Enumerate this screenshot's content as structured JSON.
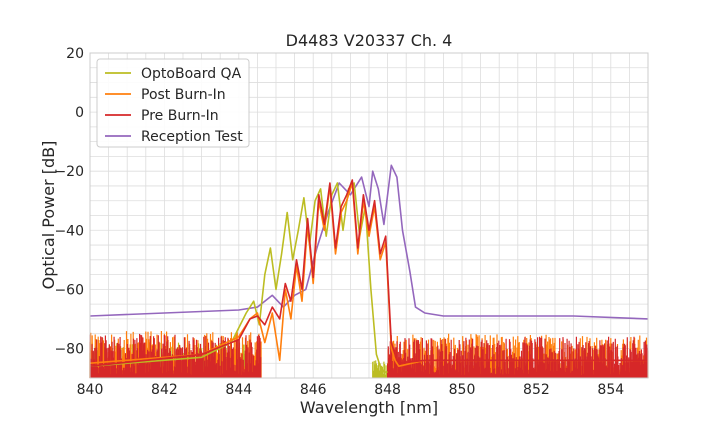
{
  "chart_data": {
    "type": "line",
    "title": "D4483 V20337 Ch. 4",
    "xlabel": "Wavelength [nm]",
    "ylabel": "Optical Power [dB]",
    "xlim": [
      840,
      855
    ],
    "ylim": [
      -90,
      20
    ],
    "xticks": [
      840,
      842,
      844,
      846,
      848,
      850,
      852,
      854
    ],
    "yticks": [
      -80,
      -60,
      -40,
      -20,
      0,
      20
    ],
    "grid": true,
    "legend_position": "top-left",
    "series": [
      {
        "name": "OptoBoard QA",
        "color": "#bcbd22",
        "x": [
          840,
          843,
          843.8,
          844.2,
          844.4,
          844.55,
          844.7,
          844.85,
          845.0,
          845.15,
          845.3,
          845.45,
          845.6,
          845.75,
          845.9,
          846.05,
          846.2,
          846.35,
          846.5,
          846.65,
          846.8,
          846.95,
          847.1,
          847.25,
          847.4,
          847.55,
          847.7,
          847.8,
          847.9,
          848.0
        ],
        "y": [
          -86,
          -83,
          -78,
          -68,
          -64,
          -72,
          -55,
          -46,
          -60,
          -48,
          -34,
          -50,
          -40,
          -29,
          -45,
          -30,
          -26,
          -42,
          -28,
          -24,
          -40,
          -26,
          -24,
          -42,
          -32,
          -60,
          -82,
          -86,
          -88,
          -88
        ]
      },
      {
        "name": "Post Burn-In",
        "color": "#ff7f0e",
        "x": [
          840,
          843,
          844.0,
          844.3,
          844.5,
          844.7,
          844.9,
          845.1,
          845.25,
          845.4,
          845.55,
          845.7,
          845.85,
          846.0,
          846.15,
          846.3,
          846.45,
          846.6,
          846.75,
          846.9,
          847.05,
          847.2,
          847.35,
          847.5,
          847.65,
          847.8,
          847.95,
          848.1,
          848.2,
          848.3,
          849,
          855
        ],
        "y": [
          -85,
          -82,
          -76,
          -70,
          -68,
          -78,
          -68,
          -84,
          -60,
          -70,
          -52,
          -64,
          -38,
          -58,
          -30,
          -40,
          -25,
          -48,
          -34,
          -30,
          -24,
          -48,
          -30,
          -42,
          -32,
          -50,
          -44,
          -80,
          -84,
          -86,
          -84,
          -84
        ]
      },
      {
        "name": "Pre Burn-In",
        "color": "#d62728",
        "x": [
          840,
          843,
          844.0,
          844.3,
          844.5,
          844.7,
          844.9,
          845.1,
          845.25,
          845.4,
          845.55,
          845.7,
          845.85,
          846.0,
          846.15,
          846.3,
          846.45,
          846.6,
          846.75,
          846.9,
          847.05,
          847.2,
          847.35,
          847.5,
          847.65,
          847.8,
          847.95,
          848.1,
          848.2,
          848.3,
          849,
          855
        ],
        "y": [
          -86,
          -82,
          -77,
          -70,
          -69,
          -72,
          -66,
          -70,
          -58,
          -64,
          -50,
          -60,
          -36,
          -56,
          -28,
          -38,
          -24,
          -46,
          -32,
          -28,
          -23,
          -46,
          -28,
          -40,
          -30,
          -48,
          -42,
          -78,
          -82,
          -85,
          -84,
          -84
        ]
      },
      {
        "name": "Reception Test",
        "color": "#9467bd",
        "x": [
          840,
          842,
          844,
          844.5,
          844.9,
          845.2,
          845.5,
          845.8,
          846.1,
          846.4,
          846.7,
          847.0,
          847.3,
          847.5,
          847.6,
          847.75,
          847.9,
          848.1,
          848.25,
          848.4,
          848.6,
          848.75,
          849.0,
          849.5,
          851,
          853,
          855
        ],
        "y": [
          -69,
          -68,
          -67,
          -66,
          -62,
          -66,
          -62,
          -60,
          -46,
          -34,
          -24,
          -28,
          -22,
          -32,
          -20,
          -26,
          -38,
          -18,
          -22,
          -40,
          -54,
          -66,
          -68,
          -69,
          -69,
          -69,
          -70
        ]
      }
    ]
  }
}
